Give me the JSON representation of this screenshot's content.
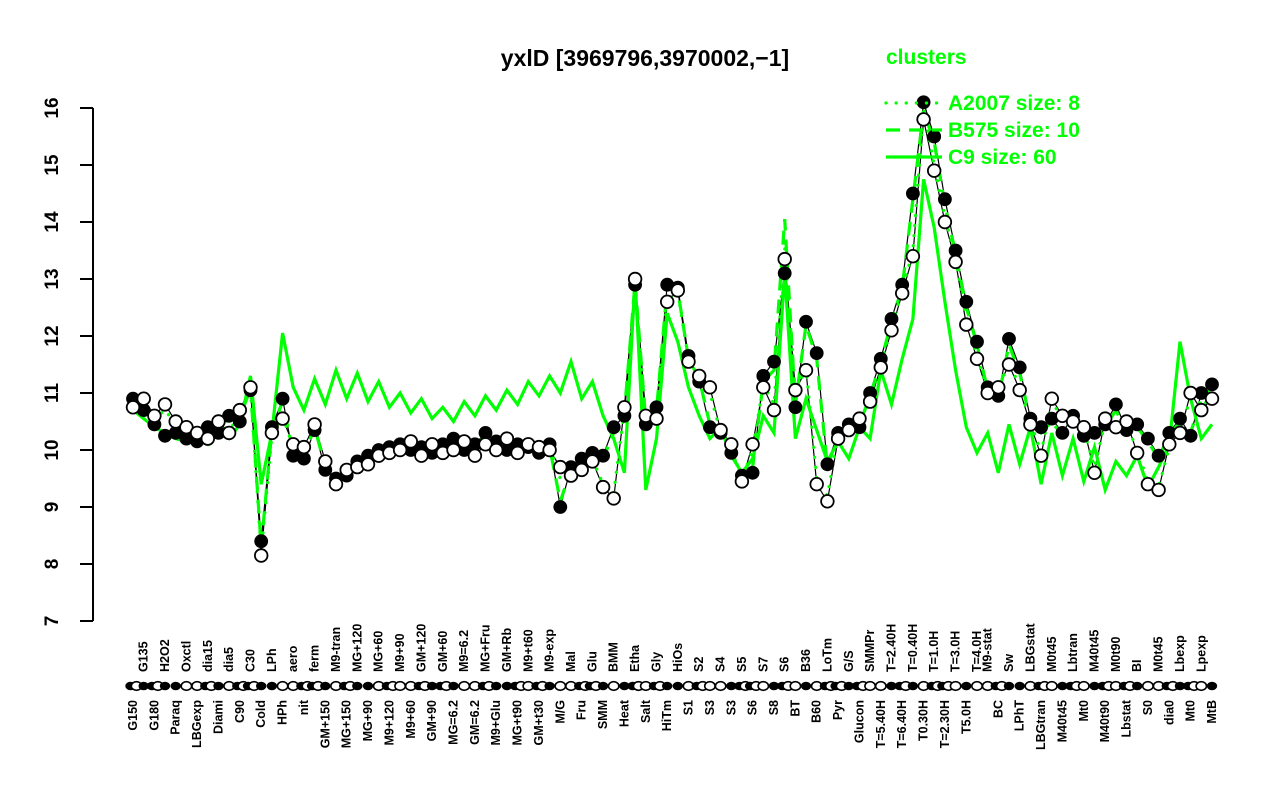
{
  "header": {
    "title": "yxlD [3969796,3970002,−1]"
  },
  "legend": {
    "title": "clusters",
    "color": "#00ff00",
    "entries": [
      {
        "label": "A2007 size: 8",
        "line_style": "dotted"
      },
      {
        "label": "B575 size: 10",
        "line_style": "dashed"
      },
      {
        "label": "C9 size: 60",
        "line_style": "solid"
      }
    ]
  },
  "chart_data": {
    "type": "line",
    "title": "yxlD [3969796,3970002,−1]",
    "xlabel": "",
    "ylabel": "",
    "ylim": [
      7,
      16
    ],
    "yticks": [
      7,
      8,
      9,
      10,
      11,
      12,
      13,
      14,
      15,
      16
    ],
    "grid": false,
    "legend_position": "top-right",
    "colors": {
      "gene": "#000000",
      "clusters": "#00ff00",
      "background": "#ffffff"
    },
    "categories": [
      "G150",
      "G135",
      "G180",
      "H2O2",
      "Paraq",
      "Oxctl",
      "LBGexp",
      "dia15",
      "Diami",
      "dia5",
      "C90",
      "C30",
      "Cold",
      "LPh",
      "HPh",
      "aero",
      "nit",
      "ferm",
      "GM+150",
      "M9-tran",
      "MG+150",
      "MG+120",
      "MG+90",
      "MG+60",
      "M9+120",
      "M9+90",
      "M9+60",
      "GM+120",
      "GM+90",
      "GM+60",
      "MG=6.2",
      "M9=6.2",
      "GM=6.2",
      "MG+Fru",
      "M9+Glu",
      "GM+Rb",
      "MG+t90",
      "M9+t60",
      "GM+t30",
      "M9-exp",
      "M/G",
      "Mal",
      "Fru",
      "Glu",
      "SMM",
      "BMM",
      "Heat",
      "Etha",
      "Salt",
      "Gly",
      "HiTm",
      "HiOs",
      "S1",
      "S2",
      "S3",
      "S4",
      "S3",
      "S5",
      "S6",
      "S7",
      "S8",
      "S6",
      "BT",
      "B36",
      "B60",
      "LoTm",
      "Pyr",
      "G/S",
      "Glucon",
      "SMMPr",
      "T=5.40H",
      "T=2.40H",
      "T=6.40H",
      "T=0.40H",
      "T0.30H",
      "T=1.0H",
      "T=2.30H",
      "T=3.0H",
      "T5.0H",
      "T=4.0H",
      "M9-stat",
      "BC",
      "Sw",
      "LPhT",
      "LBGstat",
      "LBGtran",
      "M0t45",
      "M40t45",
      "Lbtran",
      "Mt0",
      "M40t45",
      "M40t90",
      "M0t90",
      "Lbstat",
      "BI",
      "S0",
      "M0t45",
      "dia0",
      "Lbexp",
      "Mt0",
      "Lpexp",
      "MtB"
    ],
    "label_rows": "btbtbtbtbtbtbtbtbtbtbtbtbtbtbtbtbtbtbtbtbtbtbtbtbtbtbtbtbtbtbtbtbtbtbtbtbtbtbtbttbtbtbtbtbtbtbtbtbtbtb",
    "marker_strip": "bfbffoobfobbffoobbfobffoboobfbfoobffbobfoobbfofbobffoboofbbofbofobbfboofbfobbofoobffobofbofbobfoobfbof",
    "series": [
      {
        "id": "profile-filled",
        "color": "#000000",
        "marker": "filled-circle",
        "line": "solid",
        "width": 1.2,
        "values": [
          10.9,
          10.7,
          10.45,
          10.25,
          10.3,
          10.2,
          10.15,
          10.4,
          10.3,
          10.6,
          10.5,
          11.05,
          8.4,
          10.4,
          10.9,
          9.9,
          9.85,
          10.35,
          9.65,
          9.5,
          9.55,
          9.8,
          9.9,
          10.0,
          10.05,
          10.1,
          10.0,
          10.05,
          9.95,
          10.1,
          10.2,
          10.0,
          10.1,
          10.3,
          10.15,
          10.0,
          10.1,
          10.05,
          9.95,
          10.1,
          9.0,
          9.7,
          9.85,
          9.95,
          9.9,
          10.4,
          10.6,
          12.9,
          10.45,
          10.75,
          12.9,
          12.85,
          11.65,
          11.2,
          10.4,
          10.3,
          9.95,
          9.55,
          9.6,
          11.3,
          11.55,
          13.1,
          10.75,
          12.25,
          11.7,
          9.75,
          10.3,
          10.45,
          10.4,
          11.0,
          11.6,
          12.3,
          12.9,
          14.5,
          16.1,
          15.5,
          14.4,
          13.5,
          12.6,
          11.9,
          11.1,
          10.95,
          11.95,
          11.45,
          10.55,
          10.4,
          10.55,
          10.3,
          10.6,
          10.25,
          10.3,
          10.45,
          10.8,
          10.35,
          10.45,
          10.2,
          9.9,
          10.3,
          10.55,
          10.25,
          11.0,
          11.15
        ]
      },
      {
        "id": "profile-open",
        "color": "#000000",
        "marker": "open-circle",
        "line": "solid",
        "width": 1.2,
        "values": [
          10.75,
          10.9,
          10.6,
          10.8,
          10.5,
          10.4,
          10.3,
          10.2,
          10.5,
          10.3,
          10.7,
          11.1,
          8.15,
          10.3,
          10.55,
          10.1,
          10.05,
          10.45,
          9.8,
          9.4,
          9.65,
          9.7,
          9.75,
          9.9,
          9.95,
          10.0,
          10.15,
          9.9,
          10.1,
          9.95,
          10.0,
          10.15,
          9.9,
          10.1,
          10.0,
          10.2,
          9.95,
          10.1,
          10.05,
          10.0,
          9.7,
          9.55,
          9.65,
          9.8,
          9.35,
          9.15,
          10.75,
          13.0,
          10.6,
          10.55,
          12.6,
          12.8,
          11.55,
          11.3,
          11.1,
          10.35,
          10.1,
          9.45,
          10.1,
          11.1,
          10.7,
          13.35,
          11.05,
          11.4,
          9.4,
          9.1,
          10.2,
          10.35,
          10.55,
          10.85,
          11.45,
          12.1,
          12.75,
          13.4,
          15.8,
          14.9,
          14.0,
          13.3,
          12.2,
          11.6,
          11.0,
          11.1,
          11.5,
          11.05,
          10.45,
          9.9,
          10.9,
          10.6,
          10.5,
          10.4,
          9.6,
          10.55,
          10.4,
          10.5,
          9.95,
          9.4,
          9.3,
          10.1,
          10.3,
          11.0,
          10.7,
          10.9
        ]
      },
      {
        "id": "A2007",
        "color": "#00ff00",
        "marker": "none",
        "line": "dotted",
        "width": 3.2,
        "values": [
          10.8,
          10.85,
          10.55,
          10.7,
          10.45,
          10.35,
          10.25,
          10.25,
          10.45,
          10.35,
          10.6,
          11.05,
          8.2,
          10.25,
          10.6,
          10.05,
          10.0,
          10.4,
          9.75,
          9.45,
          9.6,
          9.75,
          9.8,
          9.95,
          10.0,
          10.05,
          10.1,
          9.95,
          10.05,
          10.0,
          10.05,
          10.1,
          9.95,
          10.15,
          10.05,
          10.15,
          10.0,
          10.05,
          10.0,
          10.05,
          9.5,
          9.6,
          9.7,
          9.85,
          9.4,
          9.25,
          10.7,
          12.8,
          10.55,
          10.6,
          12.65,
          12.75,
          11.6,
          11.25,
          11.0,
          10.3,
          10.05,
          9.5,
          10.0,
          11.15,
          10.8,
          13.55,
          11.0,
          11.45,
          9.5,
          9.2,
          10.25,
          10.3,
          10.5,
          10.9,
          11.5,
          12.15,
          12.8,
          13.5,
          16.0,
          15.0,
          14.1,
          13.35,
          12.3,
          11.65,
          11.05,
          11.05,
          11.55,
          11.1,
          10.5,
          9.95,
          10.85,
          10.55,
          10.55,
          10.35,
          9.7,
          10.5,
          10.45,
          10.45,
          10.0,
          9.45,
          9.35,
          10.05,
          10.35,
          10.9,
          10.75,
          10.95
        ]
      },
      {
        "id": "B575",
        "color": "#00ff00",
        "marker": "none",
        "line": "dashed",
        "width": 3.2,
        "values": [
          10.85,
          10.75,
          10.5,
          10.3,
          10.35,
          10.25,
          10.2,
          10.35,
          10.35,
          10.55,
          10.55,
          11.1,
          8.3,
          10.35,
          10.85,
          9.95,
          9.9,
          10.4,
          9.7,
          9.45,
          9.6,
          9.75,
          9.95,
          10.05,
          10.1,
          10.05,
          10.05,
          10.0,
          10.0,
          10.05,
          10.15,
          10.05,
          10.05,
          10.25,
          10.1,
          10.05,
          10.05,
          10.1,
          10.0,
          10.05,
          9.1,
          9.65,
          9.8,
          9.9,
          9.85,
          10.3,
          10.65,
          12.95,
          10.5,
          10.7,
          12.85,
          12.8,
          11.6,
          11.25,
          10.45,
          10.35,
          10.0,
          9.5,
          9.7,
          11.2,
          11.4,
          14.05,
          10.8,
          12.2,
          11.6,
          9.7,
          10.25,
          10.4,
          10.45,
          10.95,
          11.55,
          12.25,
          12.85,
          14.4,
          15.95,
          15.4,
          14.3,
          13.45,
          12.5,
          11.85,
          11.05,
          10.9,
          11.85,
          11.35,
          10.5,
          10.3,
          10.5,
          10.25,
          10.55,
          10.2,
          10.25,
          10.4,
          10.7,
          10.3,
          10.4,
          10.15,
          9.85,
          10.25,
          10.5,
          10.3,
          10.9,
          11.1
        ]
      },
      {
        "id": "C9",
        "color": "#00ff00",
        "marker": "none",
        "line": "solid",
        "width": 3.2,
        "values": [
          10.7,
          10.55,
          10.4,
          10.3,
          10.2,
          10.15,
          10.25,
          10.1,
          10.35,
          10.2,
          10.45,
          11.3,
          9.4,
          10.3,
          12.05,
          11.1,
          10.7,
          11.25,
          10.8,
          11.4,
          10.9,
          11.35,
          10.85,
          11.2,
          10.75,
          11.0,
          10.65,
          10.9,
          10.55,
          10.75,
          10.5,
          10.85,
          10.6,
          10.95,
          10.7,
          11.05,
          10.8,
          11.2,
          10.95,
          11.3,
          11.0,
          11.55,
          10.9,
          11.2,
          10.6,
          10.2,
          9.6,
          13.0,
          9.3,
          10.2,
          12.4,
          11.9,
          11.1,
          10.6,
          10.2,
          10.4,
          9.9,
          9.6,
          9.85,
          10.6,
          10.3,
          13.1,
          10.2,
          10.9,
          10.35,
          9.8,
          10.15,
          9.85,
          10.4,
          10.2,
          11.4,
          10.8,
          11.6,
          12.3,
          14.75,
          13.9,
          12.6,
          11.4,
          10.4,
          9.95,
          10.3,
          9.6,
          10.45,
          9.75,
          10.4,
          9.4,
          10.3,
          9.55,
          10.2,
          9.45,
          10.05,
          9.3,
          9.8,
          9.55,
          9.9,
          9.35,
          9.7,
          10.1,
          11.9,
          10.9,
          10.2,
          10.45
        ]
      }
    ]
  }
}
